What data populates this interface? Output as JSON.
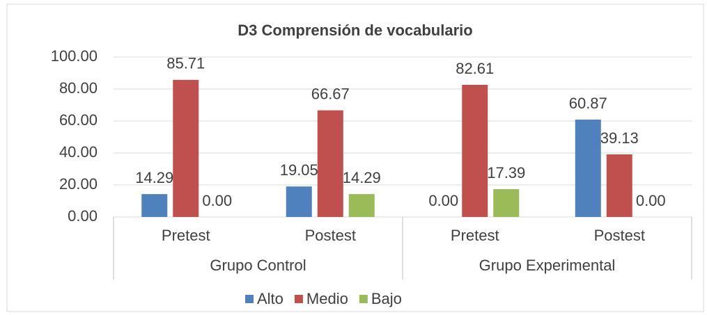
{
  "chart_data": {
    "type": "bar",
    "title": "D3 Comprensión de vocabulario",
    "groups": [
      "Grupo Control",
      "Grupo Experimental"
    ],
    "categories": [
      "Pretest",
      "Postest",
      "Pretest",
      "Postest"
    ],
    "series": [
      {
        "name": "Alto",
        "color": "#4f81bd",
        "values": [
          14.29,
          19.05,
          0,
          60.87
        ],
        "value_labels": [
          "14.29",
          "19.05",
          "0.00",
          "60.87"
        ]
      },
      {
        "name": "Medio",
        "color": "#c0504d",
        "values": [
          85.71,
          66.67,
          82.61,
          39.13
        ],
        "value_labels": [
          "85.71",
          "66.67",
          "82.61",
          "39.13"
        ]
      },
      {
        "name": "Bajo",
        "color": "#9bbb59",
        "values": [
          0,
          14.29,
          17.39,
          0
        ],
        "value_labels": [
          "0.00",
          "14.29",
          "17.39",
          "0.00"
        ]
      }
    ],
    "ylim": [
      0,
      100
    ],
    "yticks": [
      {
        "value": 0,
        "label": "0.00"
      },
      {
        "value": 20,
        "label": "20.00"
      },
      {
        "value": 40,
        "label": "40.00"
      },
      {
        "value": 60,
        "label": "60.00"
      },
      {
        "value": 80,
        "label": "80.00"
      },
      {
        "value": 100,
        "label": "100.00"
      }
    ],
    "grid": true,
    "legend": "bottom"
  }
}
